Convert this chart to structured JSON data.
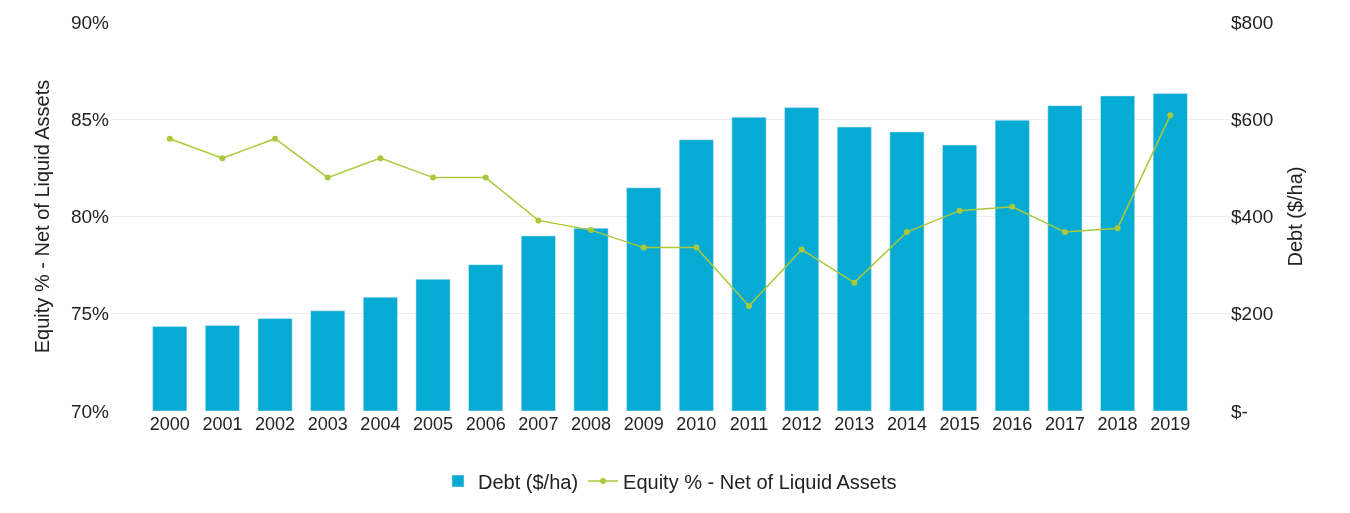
{
  "chart_data": {
    "type": "bar",
    "categories": [
      "2000",
      "2001",
      "2002",
      "2003",
      "2004",
      "2005",
      "2006",
      "2007",
      "2008",
      "2009",
      "2010",
      "2011",
      "2012",
      "2013",
      "2014",
      "2015",
      "2016",
      "2017",
      "2018",
      "2019"
    ],
    "series": [
      {
        "name": "Debt ($/ha)",
        "axis": "y2",
        "color": "#06abd3",
        "values": [
          174,
          176,
          190,
          206,
          234,
          271,
          301,
          360,
          376,
          459,
          558,
          604,
          624,
          584,
          574,
          547,
          598,
          628,
          648,
          653
        ]
      },
      {
        "name": "Equity % - Net of Liquid Assets",
        "type": "line",
        "axis": "y",
        "color": "#a9c93a",
        "marker": "circle",
        "values": [
          84.0,
          83.0,
          84.0,
          82.0,
          83.0,
          82.0,
          82.0,
          79.8,
          79.3,
          78.4,
          78.4,
          75.4,
          78.3,
          76.6,
          79.2,
          80.3,
          80.5,
          79.2,
          79.4,
          85.2
        ]
      }
    ],
    "ylabel": "Equity % - Net of Liquid Assets",
    "y2label": "Debt ($/ha)",
    "ylim": [
      70,
      90
    ],
    "yticks": [
      {
        "value": 70,
        "label": "70%"
      },
      {
        "value": 75,
        "label": "75%"
      },
      {
        "value": 80,
        "label": "80%"
      },
      {
        "value": 85,
        "label": "85%"
      },
      {
        "value": 90,
        "label": "90%"
      }
    ],
    "y2lim": [
      0,
      800
    ],
    "y2ticks": [
      {
        "value": 0,
        "label": "$-"
      },
      {
        "value": 200,
        "label": "$200"
      },
      {
        "value": 400,
        "label": "$400"
      },
      {
        "value": 600,
        "label": "$600"
      },
      {
        "value": 800,
        "label": "$800"
      }
    ],
    "grid": "y",
    "legend": "bottom"
  }
}
